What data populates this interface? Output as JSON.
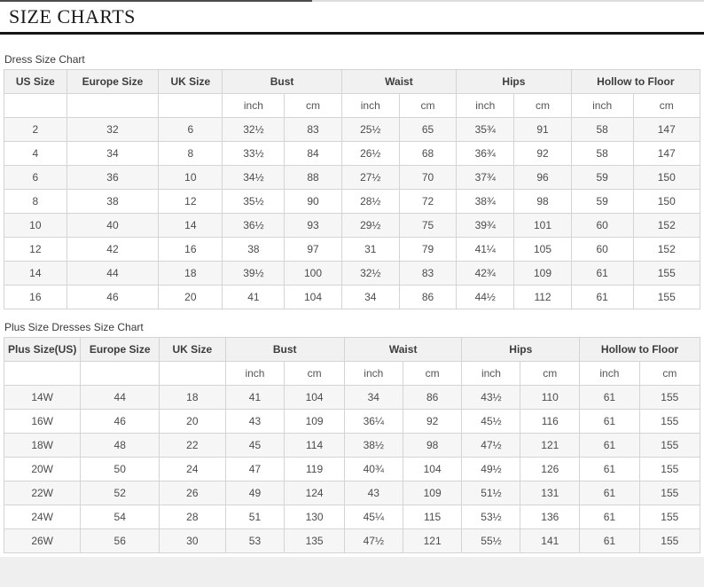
{
  "page": {
    "title": "SIZE CHARTS"
  },
  "colors": {
    "title_rule": "#161616",
    "table_border": "#d4d4d4",
    "header_bg": "#f1f1f1",
    "zebra_row_bg": "#f6f6f6",
    "footer_band_bg": "#efefef",
    "text": "#4c4c4c"
  },
  "tables": [
    {
      "caption": "Dress Size Chart",
      "size_columns": [
        "US Size",
        "Europe Size",
        "UK Size"
      ],
      "measure_columns": [
        "Bust",
        "Waist",
        "Hips",
        "Hollow to Floor"
      ],
      "unit_labels": [
        "inch",
        "cm",
        "inch",
        "cm",
        "inch",
        "cm",
        "inch",
        "cm"
      ],
      "rows": [
        [
          "2",
          "32",
          "6",
          "32½",
          "83",
          "25½",
          "65",
          "35¾",
          "91",
          "58",
          "147"
        ],
        [
          "4",
          "34",
          "8",
          "33½",
          "84",
          "26½",
          "68",
          "36¾",
          "92",
          "58",
          "147"
        ],
        [
          "6",
          "36",
          "10",
          "34½",
          "88",
          "27½",
          "70",
          "37¾",
          "96",
          "59",
          "150"
        ],
        [
          "8",
          "38",
          "12",
          "35½",
          "90",
          "28½",
          "72",
          "38¾",
          "98",
          "59",
          "150"
        ],
        [
          "10",
          "40",
          "14",
          "36½",
          "93",
          "29½",
          "75",
          "39¾",
          "101",
          "60",
          "152"
        ],
        [
          "12",
          "42",
          "16",
          "38",
          "97",
          "31",
          "79",
          "41¼",
          "105",
          "60",
          "152"
        ],
        [
          "14",
          "44",
          "18",
          "39½",
          "100",
          "32½",
          "83",
          "42¾",
          "109",
          "61",
          "155"
        ],
        [
          "16",
          "46",
          "20",
          "41",
          "104",
          "34",
          "86",
          "44½",
          "112",
          "61",
          "155"
        ]
      ]
    },
    {
      "caption": "Plus Size Dresses Size Chart",
      "size_columns": [
        "Plus Size(US)",
        "Europe Size",
        "UK Size"
      ],
      "measure_columns": [
        "Bust",
        "Waist",
        "Hips",
        "Hollow to Floor"
      ],
      "unit_labels": [
        "inch",
        "cm",
        "inch",
        "cm",
        "inch",
        "cm",
        "inch",
        "cm"
      ],
      "rows": [
        [
          "14W",
          "44",
          "18",
          "41",
          "104",
          "34",
          "86",
          "43½",
          "110",
          "61",
          "155"
        ],
        [
          "16W",
          "46",
          "20",
          "43",
          "109",
          "36¼",
          "92",
          "45½",
          "116",
          "61",
          "155"
        ],
        [
          "18W",
          "48",
          "22",
          "45",
          "114",
          "38½",
          "98",
          "47½",
          "121",
          "61",
          "155"
        ],
        [
          "20W",
          "50",
          "24",
          "47",
          "119",
          "40¾",
          "104",
          "49½",
          "126",
          "61",
          "155"
        ],
        [
          "22W",
          "52",
          "26",
          "49",
          "124",
          "43",
          "109",
          "51½",
          "131",
          "61",
          "155"
        ],
        [
          "24W",
          "54",
          "28",
          "51",
          "130",
          "45¼",
          "115",
          "53½",
          "136",
          "61",
          "155"
        ],
        [
          "26W",
          "56",
          "30",
          "53",
          "135",
          "47½",
          "121",
          "55½",
          "141",
          "61",
          "155"
        ]
      ]
    }
  ]
}
